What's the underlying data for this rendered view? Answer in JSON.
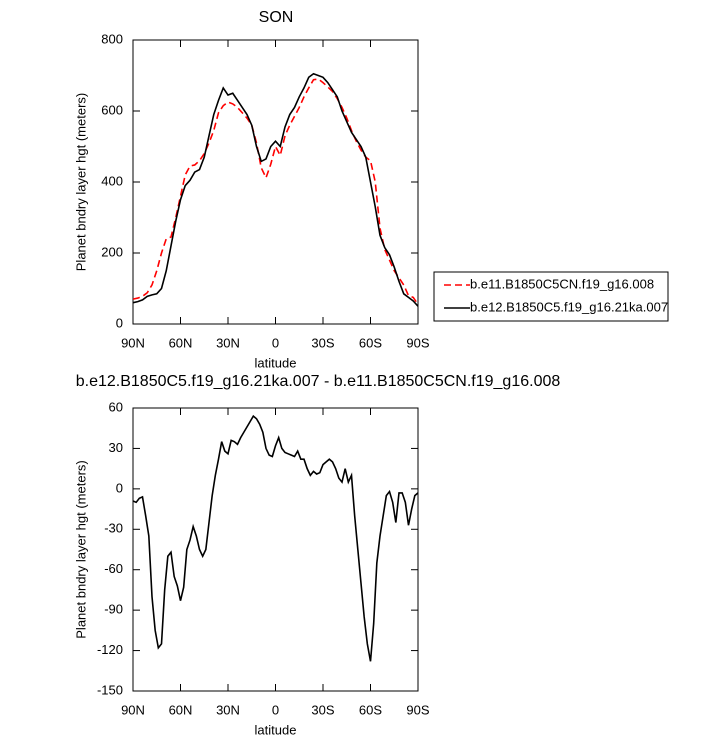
{
  "chart_data": [
    {
      "type": "line",
      "title": "SON",
      "xlabel": "latitude",
      "ylabel": "Planet bndry layer hgt (meters)",
      "x": [
        90,
        87,
        84,
        81,
        78,
        75,
        72,
        69,
        66,
        63,
        60,
        57,
        54,
        51,
        48,
        45,
        42,
        39,
        36,
        33,
        30,
        27,
        24,
        21,
        18,
        15,
        12,
        9,
        6,
        3,
        0,
        -3,
        -6,
        -9,
        -12,
        -15,
        -18,
        -21,
        -24,
        -27,
        -30,
        -33,
        -36,
        -39,
        -42,
        -45,
        -48,
        -51,
        -54,
        -57,
        -60,
        -63,
        -66,
        -69,
        -72,
        -75,
        -78,
        -81,
        -84,
        -87,
        -90
      ],
      "series": [
        {
          "name": "b.e11.B1850C5CN.f19_g16.008",
          "color": "#ff0000",
          "dash": true,
          "values": [
            70,
            73,
            78,
            88,
            110,
            150,
            200,
            240,
            245,
            300,
            360,
            420,
            445,
            448,
            460,
            480,
            510,
            545,
            595,
            615,
            625,
            620,
            610,
            595,
            580,
            560,
            510,
            440,
            412,
            450,
            500,
            475,
            530,
            560,
            585,
            610,
            640,
            665,
            688,
            690,
            680,
            668,
            655,
            635,
            610,
            580,
            545,
            515,
            490,
            470,
            460,
            400,
            270,
            210,
            180,
            150,
            130,
            110,
            80,
            75,
            55
          ]
        },
        {
          "name": "b.e12.B1850C5.f19_g16.21ka.007",
          "color": "#000000",
          "dash": false,
          "values": [
            60,
            63,
            68,
            78,
            82,
            85,
            100,
            150,
            220,
            290,
            350,
            390,
            405,
            428,
            435,
            470,
            530,
            590,
            630,
            665,
            645,
            650,
            630,
            610,
            590,
            560,
            500,
            458,
            465,
            500,
            515,
            500,
            555,
            590,
            610,
            640,
            665,
            695,
            705,
            700,
            695,
            680,
            660,
            640,
            600,
            570,
            540,
            520,
            500,
            470,
            400,
            330,
            250,
            215,
            195,
            160,
            120,
            85,
            75,
            65,
            50
          ]
        }
      ],
      "xlim": [
        90,
        -90
      ],
      "xticks": [
        {
          "value": 90,
          "label": "90N"
        },
        {
          "value": 60,
          "label": "60N"
        },
        {
          "value": 30,
          "label": "30N"
        },
        0,
        {
          "value": -30,
          "label": "30S"
        },
        {
          "value": -60,
          "label": "60S"
        },
        {
          "value": -90,
          "label": "90S"
        }
      ],
      "ylim": [
        0,
        800
      ],
      "yticks": [
        0,
        200,
        400,
        600,
        800
      ],
      "legend": "right"
    },
    {
      "type": "line",
      "title": "b.e12.B1850C5.f19_g16.21ka.007 - b.e11.B1850C5CN.f19_g16.008",
      "xlabel": "latitude",
      "ylabel": "Planet bndry layer hgt (meters)",
      "x": [
        90,
        88,
        86,
        84,
        82,
        80,
        78,
        76,
        74,
        72,
        70,
        68,
        66,
        64,
        62,
        60,
        58,
        56,
        54,
        52,
        50,
        48,
        46,
        44,
        42,
        40,
        38,
        36,
        34,
        32,
        30,
        28,
        26,
        24,
        22,
        20,
        18,
        16,
        14,
        12,
        10,
        8,
        6,
        4,
        2,
        0,
        -2,
        -4,
        -6,
        -8,
        -10,
        -12,
        -14,
        -16,
        -18,
        -20,
        -22,
        -24,
        -26,
        -28,
        -30,
        -32,
        -34,
        -36,
        -38,
        -40,
        -42,
        -44,
        -46,
        -48,
        -50,
        -52,
        -54,
        -56,
        -58,
        -60,
        -62,
        -64,
        -66,
        -68,
        -70,
        -72,
        -74,
        -76,
        -78,
        -80,
        -82,
        -84,
        -86,
        -88,
        -90
      ],
      "values": [
        -9,
        -10,
        -7,
        -6,
        -20,
        -35,
        -80,
        -105,
        -118,
        -115,
        -75,
        -50,
        -47,
        -65,
        -72,
        -83,
        -73,
        -45,
        -38,
        -28,
        -35,
        -45,
        -50,
        -45,
        -25,
        -5,
        10,
        22,
        35,
        28,
        26,
        36,
        35,
        33,
        38,
        42,
        46,
        50,
        54,
        52,
        48,
        42,
        30,
        25,
        24,
        32,
        38,
        30,
        27,
        26,
        25,
        24,
        28,
        22,
        22,
        15,
        10,
        13,
        11,
        12,
        18,
        20,
        22,
        20,
        15,
        8,
        5,
        15,
        5,
        10,
        -20,
        -45,
        -70,
        -95,
        -115,
        -128,
        -100,
        -55,
        -35,
        -20,
        -5,
        -2,
        -10,
        -25,
        -3,
        -3,
        -10,
        -27,
        -15,
        -5,
        -3
      ],
      "color": "#000000",
      "xlim": [
        90,
        -90
      ],
      "xticks": [
        {
          "value": 90,
          "label": "90N"
        },
        {
          "value": 60,
          "label": "60N"
        },
        {
          "value": 30,
          "label": "30N"
        },
        0,
        {
          "value": -30,
          "label": "30S"
        },
        {
          "value": -60,
          "label": "60S"
        },
        {
          "value": -90,
          "label": "90S"
        }
      ],
      "ylim": [
        -150,
        60
      ],
      "yticks": [
        -150,
        -120,
        -90,
        -60,
        -30,
        0,
        30,
        60
      ]
    }
  ]
}
